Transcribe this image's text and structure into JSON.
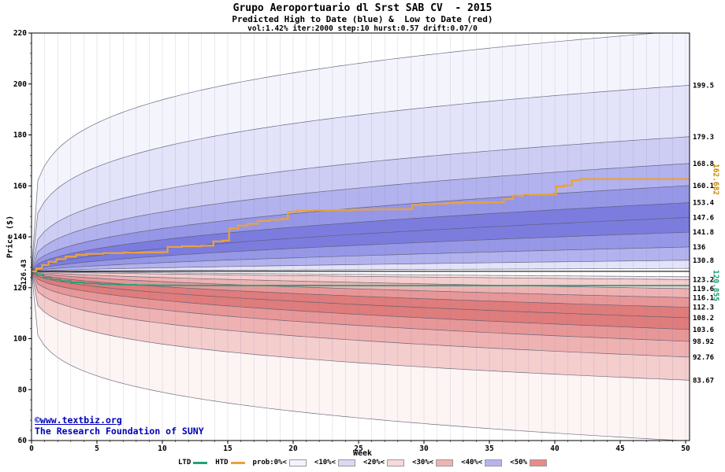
{
  "header": {
    "title": "Grupo Aeroportuario dl Srst SAB CV  - 2015",
    "subtitle": "Predicted High to Date (blue) &  Low to Date (red)",
    "params": "vol:1.42% iter:2000 step:10 hurst:0.57 drift:0.07/0"
  },
  "footer": {
    "credit_url": "©www.textbiz.org",
    "credit_org": "The Research Foundation of SUNY"
  },
  "legend": {
    "ltd_label": "LTD",
    "htd_label": "HTD",
    "prob_items": [
      {
        "label": "prob:0%<",
        "color": "#f4f2fc"
      },
      {
        "label": "<10%<",
        "color": "#d9d9f4"
      },
      {
        "label": "<20%<",
        "color": "#f6d9d9"
      },
      {
        "label": "<30%<",
        "color": "#f0b2b2"
      },
      {
        "label": "<40%<",
        "color": "#b4b4ee"
      },
      {
        "label": "<50%",
        "color": "#e98989"
      }
    ]
  },
  "chart_data": {
    "type": "area",
    "title": "Grupo Aeroportuario dl Srst SAB CV  - 2015",
    "xlabel": "Week",
    "ylabel": "Price ($)",
    "xlim": [
      0,
      50.3
    ],
    "ylim": [
      60,
      220
    ],
    "x_ticks": [
      0,
      5,
      10,
      15,
      20,
      25,
      30,
      35,
      40,
      45,
      50
    ],
    "y_ticks": [
      60,
      80,
      100,
      120,
      140,
      160,
      180,
      200,
      220
    ],
    "y_minor_step": 4,
    "start_price": 126.43,
    "start_price_label": "126.43",
    "high_fan": {
      "shade_colors": [
        "#f4f4fd",
        "#e3e3f9",
        "#cdcdf4",
        "#b2b2ee",
        "#9797e7",
        "#7c7cdf"
      ],
      "band_shades": [
        0,
        1,
        2,
        3,
        4,
        5,
        5,
        4,
        3,
        1
      ],
      "boundaries": [
        {
          "end": 221.0,
          "p": 0.21,
          "label": ""
        },
        {
          "end": 199.5,
          "p": 0.25,
          "label": "199.5"
        },
        {
          "end": 179.3,
          "p": 0.31,
          "label": "179.3"
        },
        {
          "end": 168.8,
          "p": 0.37,
          "label": "168.8"
        },
        {
          "end": 160.1,
          "p": 0.43,
          "label": "160.1"
        },
        {
          "end": 153.4,
          "p": 0.48,
          "label": "153.4"
        },
        {
          "end": 147.6,
          "p": 0.53,
          "label": "147.6"
        },
        {
          "end": 141.8,
          "p": 0.58,
          "label": "141.8"
        },
        {
          "end": 136.0,
          "p": 0.64,
          "label": "136"
        },
        {
          "end": 130.8,
          "p": 0.71,
          "label": "130.8"
        },
        {
          "end": 127.6,
          "p": 0.85,
          "label": ""
        }
      ]
    },
    "low_fan": {
      "shade_colors": [
        "#fdf4f4",
        "#f9e3e3",
        "#f4cdcd",
        "#eeb2b2",
        "#e79797",
        "#df7c7c"
      ],
      "band_shades": [
        1,
        2,
        3,
        4,
        5,
        5,
        4,
        3,
        2,
        0
      ],
      "boundaries": [
        {
          "end": 124.3,
          "p": 0.85,
          "label": ""
        },
        {
          "end": 123.2,
          "p": 0.71,
          "label": "123.2"
        },
        {
          "end": 119.6,
          "p": 0.64,
          "label": "119.6"
        },
        {
          "end": 116.1,
          "p": 0.58,
          "label": "116.1"
        },
        {
          "end": 112.3,
          "p": 0.53,
          "label": "112.3"
        },
        {
          "end": 108.2,
          "p": 0.48,
          "label": "108.2"
        },
        {
          "end": 103.6,
          "p": 0.43,
          "label": "103.6"
        },
        {
          "end": 98.92,
          "p": 0.37,
          "label": "98.92"
        },
        {
          "end": 92.76,
          "p": 0.31,
          "label": "92.76"
        },
        {
          "end": 83.67,
          "p": 0.25,
          "label": "83.67"
        },
        {
          "end": 59.8,
          "p": 0.21,
          "label": ""
        }
      ]
    },
    "htd_line": {
      "name": "HTD",
      "color": "#eaa23c",
      "final_label": "162.682",
      "label_color": "#cc8800",
      "points": [
        [
          0,
          126.43
        ],
        [
          0.35,
          127.6
        ],
        [
          0.8,
          128.9
        ],
        [
          1.3,
          130.2
        ],
        [
          1.9,
          131.2
        ],
        [
          2.6,
          132.2
        ],
        [
          3.4,
          132.9
        ],
        [
          4.2,
          133.3
        ],
        [
          5.5,
          133.6
        ],
        [
          7,
          133.8
        ],
        [
          8.5,
          133.9
        ],
        [
          10,
          134.0
        ],
        [
          10.4,
          136.0
        ],
        [
          11.5,
          136.3
        ],
        [
          13,
          136.5
        ],
        [
          13.9,
          138.2
        ],
        [
          14.6,
          138.5
        ],
        [
          15.1,
          143.3
        ],
        [
          15.8,
          144.4
        ],
        [
          16.5,
          145.1
        ],
        [
          17.3,
          146.2
        ],
        [
          18.2,
          146.7
        ],
        [
          19.1,
          147.0
        ],
        [
          19.6,
          149.8
        ],
        [
          20.3,
          150.2
        ],
        [
          21.5,
          150.4
        ],
        [
          23,
          150.5
        ],
        [
          24.5,
          150.65
        ],
        [
          26,
          150.75
        ],
        [
          27.5,
          150.8
        ],
        [
          29.1,
          152.5
        ],
        [
          29.8,
          152.8
        ],
        [
          30.8,
          153.0
        ],
        [
          31.8,
          153.2
        ],
        [
          32.8,
          153.4
        ],
        [
          34.5,
          153.5
        ],
        [
          36.1,
          154.8
        ],
        [
          36.8,
          156.2
        ],
        [
          37.6,
          156.5
        ],
        [
          38.8,
          156.6
        ],
        [
          40.1,
          159.8
        ],
        [
          40.7,
          160.2
        ],
        [
          41.3,
          162.2
        ],
        [
          41.9,
          162.682
        ],
        [
          50.3,
          162.682
        ]
      ]
    },
    "ltd_line": {
      "name": "LTD",
      "color": "#1fa37c",
      "final_label": "120.855",
      "label_color": "#1d9e6e",
      "points": [
        [
          0,
          126.43
        ],
        [
          0.4,
          125.0
        ],
        [
          0.9,
          124.0
        ],
        [
          1.5,
          123.2
        ],
        [
          2.2,
          122.6
        ],
        [
          3,
          122.1
        ],
        [
          4,
          121.7
        ],
        [
          5.2,
          121.4
        ],
        [
          6.5,
          121.2
        ],
        [
          8,
          121.05
        ],
        [
          9.5,
          120.95
        ],
        [
          11.5,
          120.9
        ],
        [
          14,
          120.88
        ],
        [
          18,
          120.87
        ],
        [
          23,
          120.86
        ],
        [
          27,
          120.855
        ],
        [
          50.3,
          120.855
        ]
      ]
    }
  }
}
